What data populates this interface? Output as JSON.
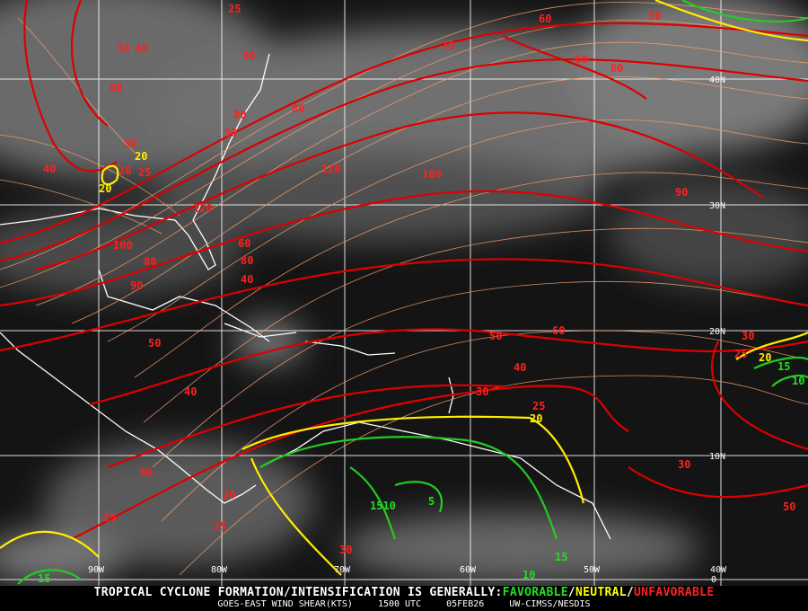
{
  "footer": {
    "headline": "TROPICAL CYCLONE FORMATION/INTENSIFICATION IS GENERALLY:",
    "favorable": "FAVORABLE",
    "neutral": "NEUTRAL",
    "unfavorable": "UNFAVORABLE",
    "sep": "/",
    "product": "GOES-EAST WIND SHEAR(KTS)",
    "time": "1500 UTC",
    "date": "05FEB26",
    "source": "UW-CIMSS/NESDIS"
  },
  "colors": {
    "favorable": "#22dd22",
    "neutral": "#ffff00",
    "unfavorable": "#ff2020",
    "streamline": "#f4a070",
    "grid": "#ffffff",
    "coast": "#ffffff"
  },
  "grid": {
    "lat_labels": [
      "40N",
      "30N",
      "20N",
      "10N",
      "0"
    ],
    "lon_labels": [
      "90W",
      "80W",
      "70W",
      "60W",
      "50W",
      "40W"
    ]
  },
  "contour_labels": {
    "red": [
      "25",
      "60",
      "30",
      "40",
      "60",
      "60",
      "60",
      "80",
      "80",
      "120",
      "120",
      "100",
      "90",
      "30",
      "40",
      "70",
      "50",
      "60",
      "40",
      "80",
      "100",
      "90",
      "80",
      "90",
      "30",
      "25",
      "30",
      "40",
      "50",
      "60",
      "50",
      "40",
      "30",
      "30",
      "25",
      "30",
      "25",
      "20",
      "25",
      "25",
      "30",
      "20",
      "50"
    ],
    "yellow": [
      "20",
      "20",
      "20",
      "20"
    ],
    "green": [
      "15",
      "10",
      "5",
      "1510",
      "15",
      "10",
      "15"
    ]
  }
}
